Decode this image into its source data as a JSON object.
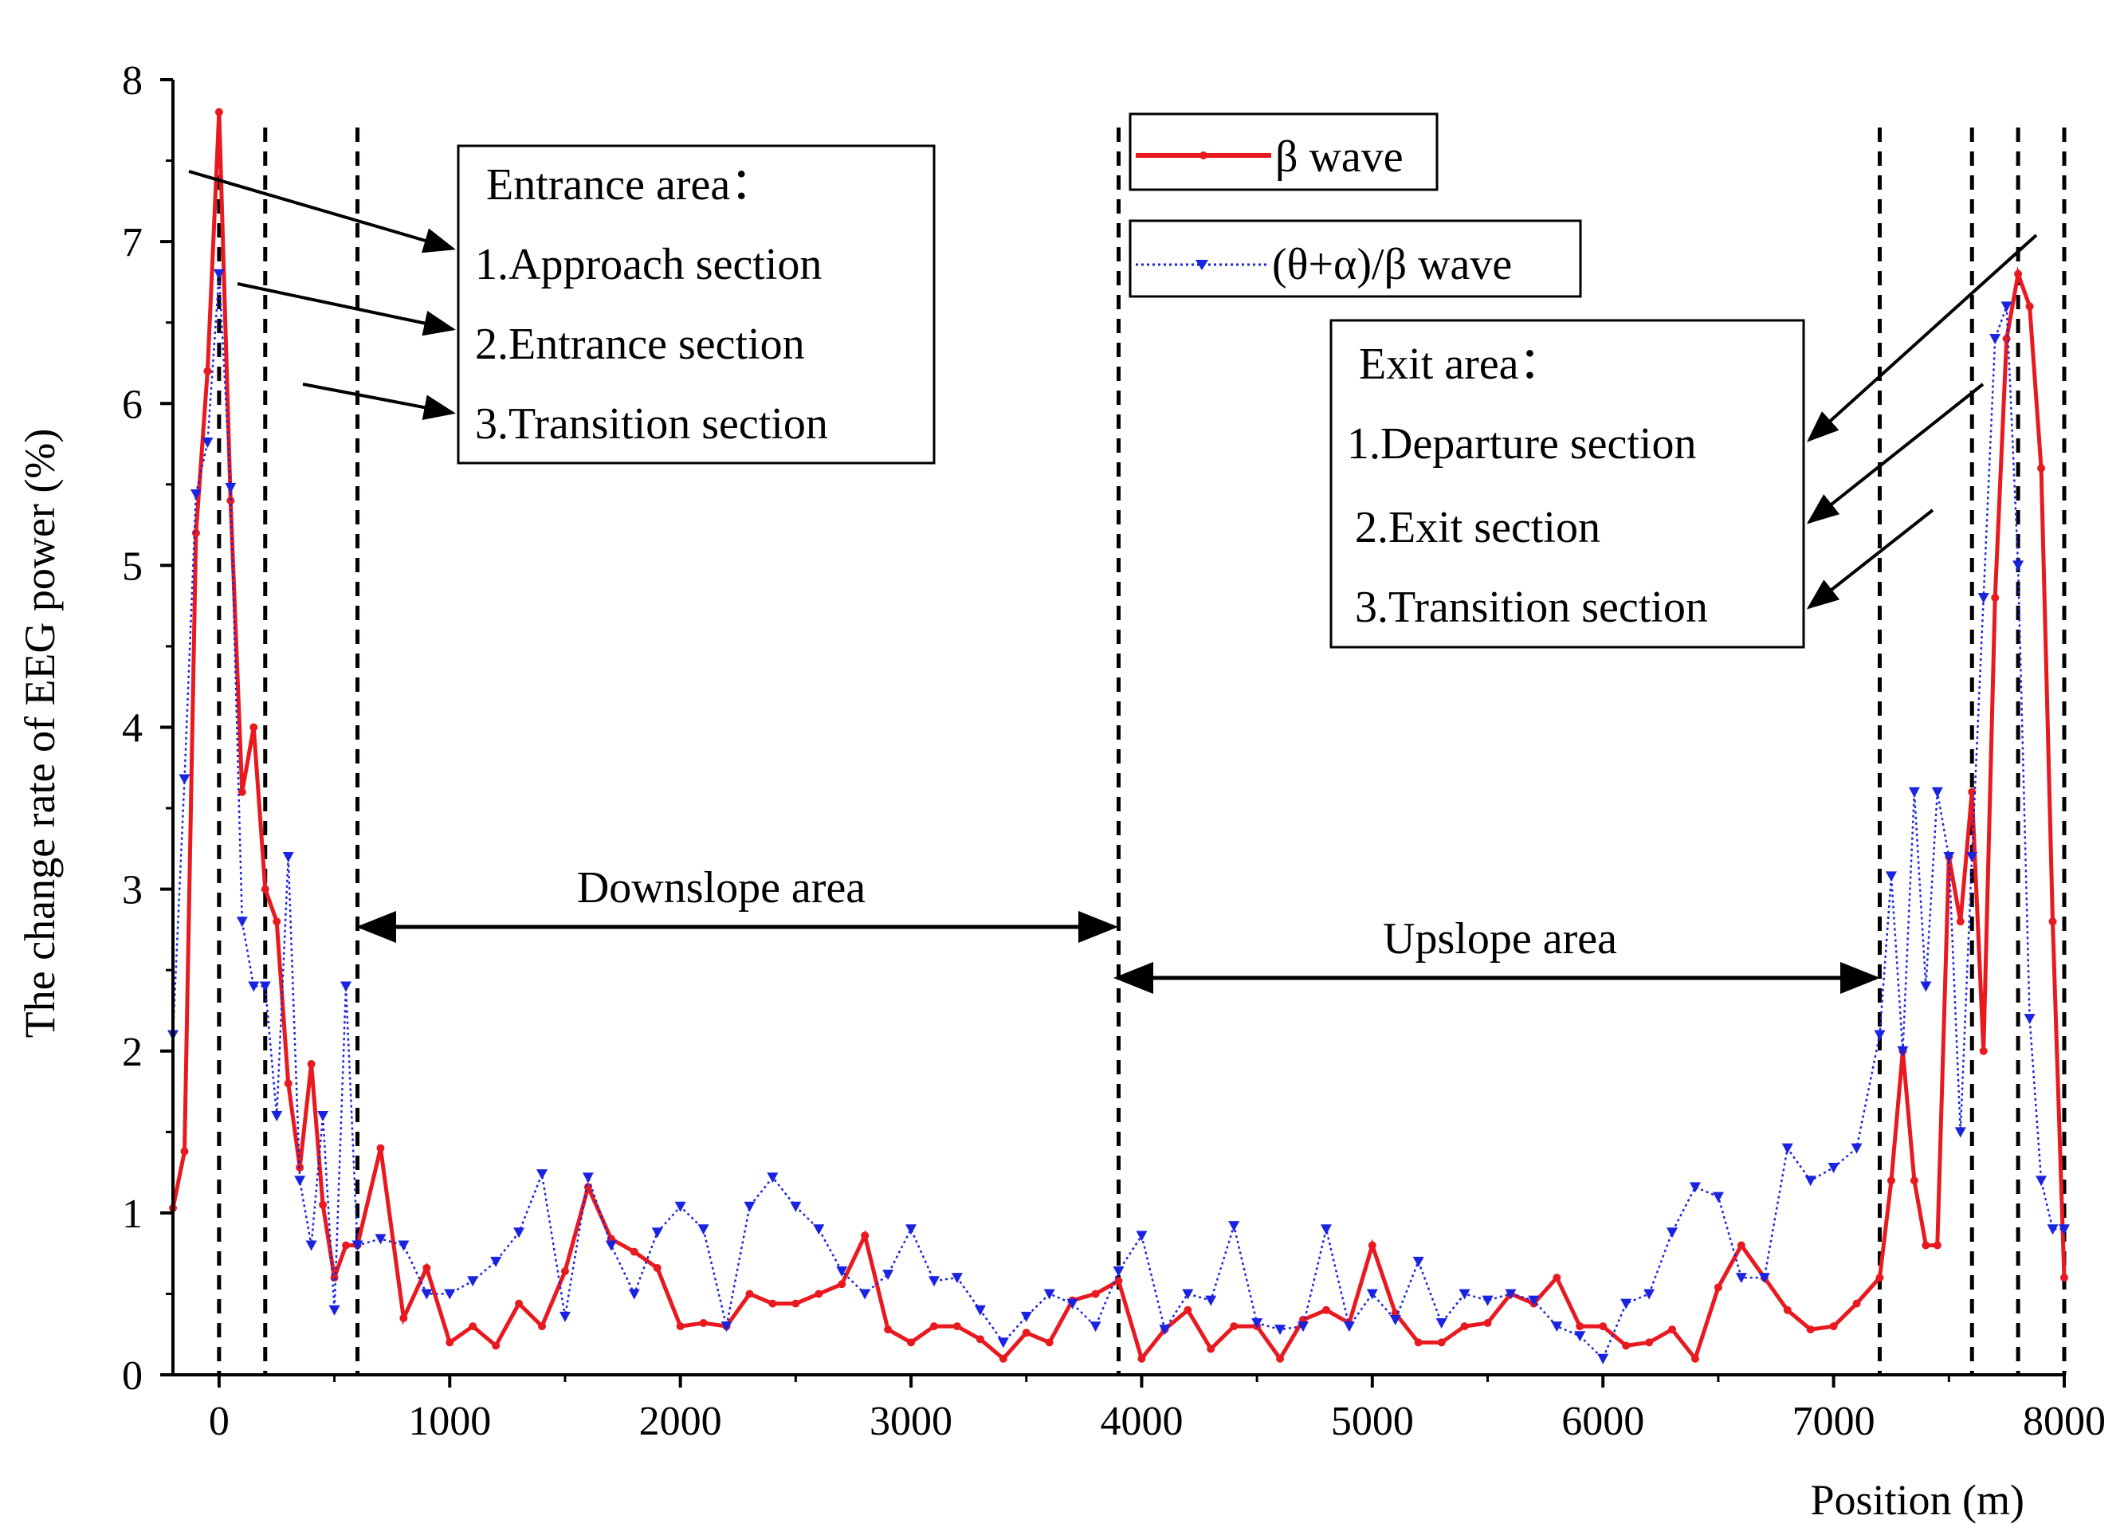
{
  "chart_data": {
    "type": "line",
    "title": "",
    "xlabel": "Position (m)",
    "ylabel": "The change rate of EEG power (%)",
    "xlim": [
      -200,
      8000
    ],
    "ylim": [
      0,
      8
    ],
    "xticks": [
      0,
      1000,
      2000,
      3000,
      4000,
      5000,
      6000,
      7000,
      8000
    ],
    "yticks": [
      0,
      1,
      2,
      3,
      4,
      5,
      6,
      7,
      8
    ],
    "grid": false,
    "legend_position": "top-center",
    "dividers_x": [
      0,
      200,
      600,
      3900,
      7200,
      7600,
      7800,
      8000
    ],
    "series": [
      {
        "name": "β wave",
        "color": "#e8191f",
        "style": "solid",
        "marker": "circle",
        "points": [
          [
            -200,
            1.03
          ],
          [
            -150,
            1.38
          ],
          [
            -100,
            5.2
          ],
          [
            -50,
            6.2
          ],
          [
            0,
            7.8
          ],
          [
            50,
            5.4
          ],
          [
            100,
            3.6
          ],
          [
            150,
            4.0
          ],
          [
            200,
            3.0
          ],
          [
            250,
            2.8
          ],
          [
            300,
            1.8
          ],
          [
            350,
            1.28
          ],
          [
            400,
            1.92
          ],
          [
            450,
            1.05
          ],
          [
            500,
            0.6
          ],
          [
            550,
            0.8
          ],
          [
            600,
            0.8
          ],
          [
            700,
            1.4
          ],
          [
            800,
            0.35
          ],
          [
            900,
            0.66
          ],
          [
            1000,
            0.2
          ],
          [
            1100,
            0.3
          ],
          [
            1200,
            0.18
          ],
          [
            1300,
            0.44
          ],
          [
            1400,
            0.3
          ],
          [
            1500,
            0.64
          ],
          [
            1600,
            1.16
          ],
          [
            1700,
            0.84
          ],
          [
            1800,
            0.76
          ],
          [
            1900,
            0.66
          ],
          [
            2000,
            0.3
          ],
          [
            2100,
            0.32
          ],
          [
            2200,
            0.3
          ],
          [
            2300,
            0.5
          ],
          [
            2400,
            0.44
          ],
          [
            2500,
            0.44
          ],
          [
            2600,
            0.5
          ],
          [
            2700,
            0.56
          ],
          [
            2800,
            0.86
          ],
          [
            2900,
            0.28
          ],
          [
            3000,
            0.2
          ],
          [
            3100,
            0.3
          ],
          [
            3200,
            0.3
          ],
          [
            3300,
            0.22
          ],
          [
            3400,
            0.1
          ],
          [
            3500,
            0.26
          ],
          [
            3600,
            0.2
          ],
          [
            3700,
            0.46
          ],
          [
            3800,
            0.5
          ],
          [
            3900,
            0.58
          ],
          [
            4000,
            0.1
          ],
          [
            4100,
            0.28
          ],
          [
            4200,
            0.4
          ],
          [
            4300,
            0.16
          ],
          [
            4400,
            0.3
          ],
          [
            4500,
            0.3
          ],
          [
            4600,
            0.1
          ],
          [
            4700,
            0.34
          ],
          [
            4800,
            0.4
          ],
          [
            4900,
            0.32
          ],
          [
            5000,
            0.8
          ],
          [
            5100,
            0.38
          ],
          [
            5200,
            0.2
          ],
          [
            5300,
            0.2
          ],
          [
            5400,
            0.3
          ],
          [
            5500,
            0.32
          ],
          [
            5600,
            0.5
          ],
          [
            5700,
            0.44
          ],
          [
            5800,
            0.6
          ],
          [
            5900,
            0.3
          ],
          [
            6000,
            0.3
          ],
          [
            6100,
            0.18
          ],
          [
            6200,
            0.2
          ],
          [
            6300,
            0.28
          ],
          [
            6400,
            0.1
          ],
          [
            6500,
            0.54
          ],
          [
            6600,
            0.8
          ],
          [
            6700,
            0.6
          ],
          [
            6800,
            0.4
          ],
          [
            6900,
            0.28
          ],
          [
            7000,
            0.3
          ],
          [
            7100,
            0.44
          ],
          [
            7200,
            0.6
          ],
          [
            7250,
            1.2
          ],
          [
            7300,
            2.0
          ],
          [
            7350,
            1.2
          ],
          [
            7400,
            0.8
          ],
          [
            7450,
            0.8
          ],
          [
            7500,
            3.2
          ],
          [
            7550,
            2.8
          ],
          [
            7600,
            3.6
          ],
          [
            7650,
            2.0
          ],
          [
            7700,
            4.8
          ],
          [
            7750,
            6.4
          ],
          [
            7800,
            6.8
          ],
          [
            7850,
            6.6
          ],
          [
            7900,
            5.6
          ],
          [
            7950,
            2.8
          ],
          [
            8000,
            0.6
          ]
        ]
      },
      {
        "name": "(θ+α)/β wave",
        "color": "#1a23e0",
        "style": "dotted",
        "marker": "triangle-down",
        "points": [
          [
            -200,
            2.1
          ],
          [
            -150,
            3.68
          ],
          [
            -100,
            5.44
          ],
          [
            -50,
            5.76
          ],
          [
            0,
            6.8
          ],
          [
            50,
            5.48
          ],
          [
            100,
            2.8
          ],
          [
            150,
            2.4
          ],
          [
            200,
            2.4
          ],
          [
            250,
            1.6
          ],
          [
            300,
            3.2
          ],
          [
            350,
            1.2
          ],
          [
            400,
            0.8
          ],
          [
            450,
            1.6
          ],
          [
            500,
            0.4
          ],
          [
            550,
            2.4
          ],
          [
            600,
            0.8
          ],
          [
            700,
            0.84
          ],
          [
            800,
            0.8
          ],
          [
            900,
            0.5
          ],
          [
            1000,
            0.5
          ],
          [
            1100,
            0.58
          ],
          [
            1200,
            0.7
          ],
          [
            1300,
            0.88
          ],
          [
            1400,
            1.24
          ],
          [
            1500,
            0.36
          ],
          [
            1600,
            1.22
          ],
          [
            1700,
            0.8
          ],
          [
            1800,
            0.5
          ],
          [
            1900,
            0.88
          ],
          [
            2000,
            1.04
          ],
          [
            2100,
            0.9
          ],
          [
            2200,
            0.3
          ],
          [
            2300,
            1.04
          ],
          [
            2400,
            1.22
          ],
          [
            2500,
            1.04
          ],
          [
            2600,
            0.9
          ],
          [
            2700,
            0.64
          ],
          [
            2800,
            0.5
          ],
          [
            2900,
            0.62
          ],
          [
            3000,
            0.9
          ],
          [
            3100,
            0.58
          ],
          [
            3200,
            0.6
          ],
          [
            3300,
            0.4
          ],
          [
            3400,
            0.2
          ],
          [
            3500,
            0.36
          ],
          [
            3600,
            0.5
          ],
          [
            3700,
            0.44
          ],
          [
            3800,
            0.3
          ],
          [
            3900,
            0.64
          ],
          [
            4000,
            0.86
          ],
          [
            4100,
            0.28
          ],
          [
            4200,
            0.5
          ],
          [
            4300,
            0.46
          ],
          [
            4400,
            0.92
          ],
          [
            4500,
            0.32
          ],
          [
            4600,
            0.28
          ],
          [
            4700,
            0.3
          ],
          [
            4800,
            0.9
          ],
          [
            4900,
            0.3
          ],
          [
            5000,
            0.5
          ],
          [
            5100,
            0.34
          ],
          [
            5200,
            0.7
          ],
          [
            5300,
            0.32
          ],
          [
            5400,
            0.5
          ],
          [
            5500,
            0.46
          ],
          [
            5600,
            0.5
          ],
          [
            5700,
            0.46
          ],
          [
            5800,
            0.3
          ],
          [
            5900,
            0.24
          ],
          [
            6000,
            0.1
          ],
          [
            6100,
            0.44
          ],
          [
            6200,
            0.5
          ],
          [
            6300,
            0.88
          ],
          [
            6400,
            1.16
          ],
          [
            6500,
            1.1
          ],
          [
            6600,
            0.6
          ],
          [
            6700,
            0.6
          ],
          [
            6800,
            1.4
          ],
          [
            6900,
            1.2
          ],
          [
            7000,
            1.28
          ],
          [
            7100,
            1.4
          ],
          [
            7200,
            2.1
          ],
          [
            7250,
            3.08
          ],
          [
            7300,
            2.0
          ],
          [
            7350,
            3.6
          ],
          [
            7400,
            2.4
          ],
          [
            7450,
            3.6
          ],
          [
            7500,
            3.2
          ],
          [
            7550,
            1.5
          ],
          [
            7600,
            3.2
          ],
          [
            7650,
            4.8
          ],
          [
            7700,
            6.4
          ],
          [
            7750,
            6.6
          ],
          [
            7800,
            5.0
          ],
          [
            7850,
            2.2
          ],
          [
            7900,
            1.2
          ],
          [
            7950,
            0.9
          ],
          [
            8000,
            0.9
          ]
        ]
      }
    ],
    "annotations": {
      "entrance": {
        "heading": "Entrance area：",
        "items": [
          "1.Approach section",
          "2.Entrance section",
          "3.Transition section"
        ]
      },
      "exit": {
        "heading": "Exit area：",
        "items": [
          "1.Departure section",
          "2.Exit section",
          "3.Transition section"
        ]
      },
      "downslope": "Downslope area",
      "upslope": "Upslope area"
    }
  }
}
